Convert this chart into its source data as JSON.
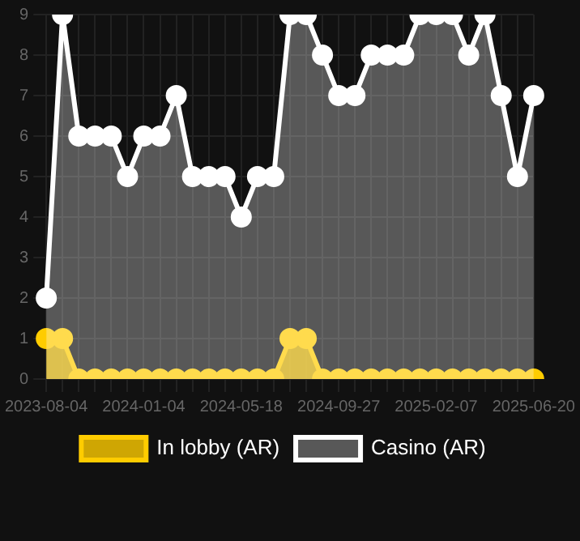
{
  "chart_data": {
    "type": "area",
    "categories": [
      "2023-08-04",
      null,
      null,
      null,
      null,
      null,
      "2024-01-04",
      null,
      null,
      null,
      null,
      null,
      "2024-05-18",
      null,
      null,
      null,
      null,
      null,
      "2024-09-27",
      null,
      null,
      null,
      null,
      null,
      "2025-02-07",
      null,
      null,
      null,
      null,
      null,
      "2025-06-20"
    ],
    "series": [
      {
        "name": "In lobby (AR)",
        "color": "#ffcc00",
        "values": [
          1,
          1,
          0,
          0,
          0,
          0,
          0,
          0,
          0,
          0,
          0,
          0,
          0,
          0,
          0,
          1,
          1,
          0,
          0,
          0,
          0,
          0,
          0,
          0,
          0,
          0,
          0,
          0,
          0,
          0,
          0
        ]
      },
      {
        "name": "Casino (AR)",
        "color": "#ffffff",
        "values": [
          2,
          9,
          6,
          6,
          6,
          5,
          6,
          6,
          7,
          5,
          5,
          5,
          4,
          5,
          5,
          9,
          9,
          8,
          7,
          7,
          8,
          8,
          8,
          9,
          9,
          9,
          8,
          9,
          7,
          5,
          7
        ]
      }
    ],
    "ylim": [
      0,
      9
    ],
    "yticks": [
      0,
      1,
      2,
      3,
      4,
      5,
      6,
      7,
      8,
      9
    ],
    "grid": true,
    "legend": "bottom",
    "marker": "circle"
  }
}
